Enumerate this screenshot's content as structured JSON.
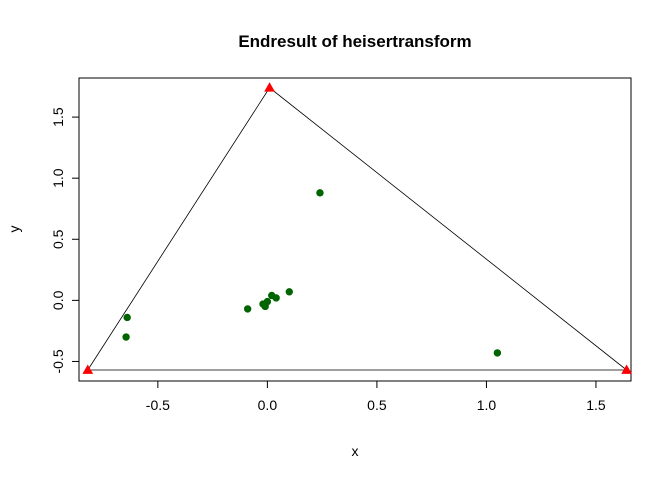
{
  "chart_data": {
    "type": "scatter",
    "title": "Endresult of heisertransform",
    "xlabel": "x",
    "ylabel": "y",
    "xlim": [
      -0.86,
      1.66
    ],
    "ylim": [
      -0.66,
      1.82
    ],
    "x_ticks": [
      -0.5,
      0.0,
      0.5,
      1.0,
      1.5
    ],
    "x_tick_labels": [
      "-0.5",
      "0.0",
      "0.5",
      "1.0",
      "1.5"
    ],
    "y_ticks": [
      -0.5,
      0.0,
      0.5,
      1.0,
      1.5
    ],
    "y_tick_labels": [
      "-0.5",
      "0.0",
      "0.5",
      "1.0",
      "1.5"
    ],
    "grid": false,
    "series": [
      {
        "marker": "circle",
        "color": "#006400",
        "points": [
          {
            "x": -0.64,
            "y": -0.14
          },
          {
            "x": -0.645,
            "y": -0.3
          },
          {
            "x": -0.09,
            "y": -0.07
          },
          {
            "x": -0.02,
            "y": -0.03
          },
          {
            "x": -0.01,
            "y": -0.05
          },
          {
            "x": 0.0,
            "y": -0.01
          },
          {
            "x": 0.02,
            "y": 0.04
          },
          {
            "x": 0.04,
            "y": 0.02
          },
          {
            "x": 0.1,
            "y": 0.07
          },
          {
            "x": 0.24,
            "y": 0.88
          },
          {
            "x": 1.05,
            "y": -0.43
          }
        ]
      },
      {
        "marker": "triangle",
        "color": "#ff0000",
        "points": [
          {
            "x": -0.82,
            "y": -0.57
          },
          {
            "x": 0.01,
            "y": 1.74
          },
          {
            "x": 1.64,
            "y": -0.57
          }
        ]
      }
    ],
    "polygon": {
      "color": "#000000",
      "vertices": [
        {
          "x": -0.82,
          "y": -0.57
        },
        {
          "x": 0.01,
          "y": 1.74
        },
        {
          "x": 1.64,
          "y": -0.57
        }
      ]
    }
  }
}
